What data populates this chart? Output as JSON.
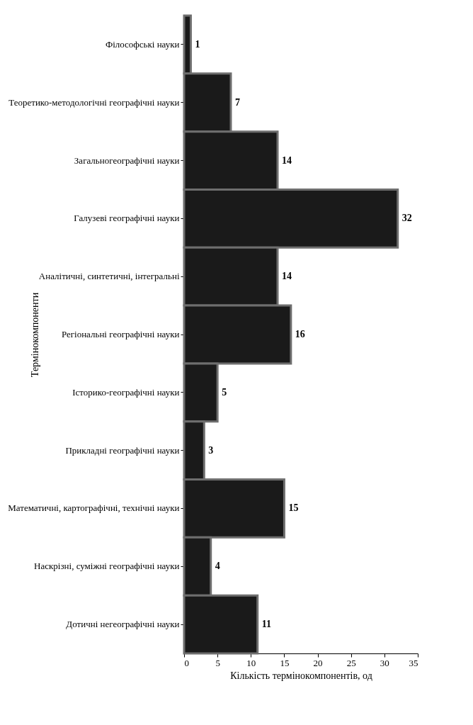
{
  "chart_data": {
    "type": "bar",
    "orientation": "horizontal",
    "categories": [
      "Філософські науки",
      "Теоретико-методологічні географічні науки",
      "Загальногеографічні науки",
      "Галузеві географічні науки",
      "Аналітичні, синтетичні, інтегральні",
      "Регіональні географічні науки",
      "Історико-географічні науки",
      "Прикладні географічні науки",
      "Математичні, картографічні, технічні науки",
      "Наскрізні, суміжні географічні науки",
      "Дотичні негеографічні науки"
    ],
    "values": [
      1,
      7,
      14,
      32,
      14,
      16,
      5,
      3,
      15,
      4,
      11
    ],
    "color": "#1a1a1a",
    "xlim": [
      0,
      35
    ],
    "xticks": [
      0,
      5,
      10,
      15,
      20,
      25,
      30,
      35
    ],
    "xlabel": "Кількість термінокомпонентів, од",
    "ylabel": "Термінокомпоненти",
    "data_labels": true
  }
}
